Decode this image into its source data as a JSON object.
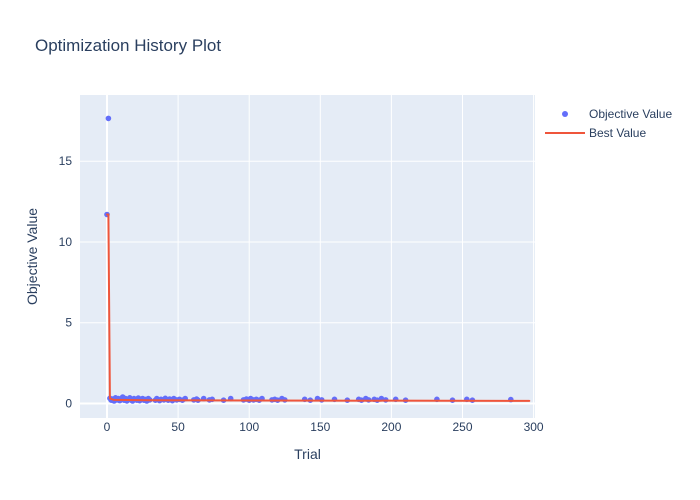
{
  "chart_data": {
    "type": "scatter",
    "title": "Optimization History Plot",
    "xlabel": "Trial",
    "ylabel": "Objective Value",
    "xlim": [
      -19,
      301
    ],
    "ylim": [
      -0.9,
      19.1
    ],
    "xticks": [
      0,
      50,
      100,
      150,
      200,
      250,
      300
    ],
    "yticks": [
      0,
      5,
      10,
      15
    ],
    "grid": true,
    "legend_position": "top-right-outside",
    "series": [
      {
        "name": "Objective Value",
        "type": "scatter",
        "color": "#636efa",
        "marker_radius": 2.8,
        "points": [
          [
            0,
            11.7
          ],
          [
            1,
            17.65
          ],
          [
            2,
            0.32
          ],
          [
            3,
            0.2
          ],
          [
            4,
            0.27
          ],
          [
            5,
            0.15
          ],
          [
            6,
            0.35
          ],
          [
            7,
            0.22
          ],
          [
            8,
            0.3
          ],
          [
            9,
            0.18
          ],
          [
            10,
            0.25
          ],
          [
            11,
            0.4
          ],
          [
            12,
            0.2
          ],
          [
            13,
            0.3
          ],
          [
            14,
            0.16
          ],
          [
            15,
            0.27
          ],
          [
            16,
            0.35
          ],
          [
            17,
            0.2
          ],
          [
            18,
            0.15
          ],
          [
            19,
            0.3
          ],
          [
            20,
            0.24
          ],
          [
            21,
            0.2
          ],
          [
            22,
            0.33
          ],
          [
            23,
            0.17
          ],
          [
            24,
            0.26
          ],
          [
            25,
            0.3
          ],
          [
            26,
            0.2
          ],
          [
            27,
            0.25
          ],
          [
            28,
            0.15
          ],
          [
            29,
            0.3
          ],
          [
            30,
            0.22
          ],
          [
            34,
            0.2
          ],
          [
            35,
            0.3
          ],
          [
            37,
            0.18
          ],
          [
            38,
            0.26
          ],
          [
            40,
            0.22
          ],
          [
            41,
            0.32
          ],
          [
            43,
            0.2
          ],
          [
            44,
            0.27
          ],
          [
            46,
            0.17
          ],
          [
            47,
            0.3
          ],
          [
            49,
            0.22
          ],
          [
            51,
            0.26
          ],
          [
            53,
            0.2
          ],
          [
            55,
            0.3
          ],
          [
            61,
            0.22
          ],
          [
            63,
            0.27
          ],
          [
            64,
            0.2
          ],
          [
            68,
            0.3
          ],
          [
            72,
            0.22
          ],
          [
            74,
            0.26
          ],
          [
            82,
            0.2
          ],
          [
            87,
            0.3
          ],
          [
            96,
            0.22
          ],
          [
            98,
            0.27
          ],
          [
            100,
            0.2
          ],
          [
            101,
            0.3
          ],
          [
            103,
            0.22
          ],
          [
            105,
            0.26
          ],
          [
            107,
            0.2
          ],
          [
            109,
            0.3
          ],
          [
            116,
            0.22
          ],
          [
            118,
            0.26
          ],
          [
            120,
            0.2
          ],
          [
            123,
            0.3
          ],
          [
            125,
            0.22
          ],
          [
            139,
            0.26
          ],
          [
            143,
            0.2
          ],
          [
            148,
            0.3
          ],
          [
            151,
            0.22
          ],
          [
            160,
            0.26
          ],
          [
            169,
            0.2
          ],
          [
            177,
            0.26
          ],
          [
            179,
            0.2
          ],
          [
            182,
            0.3
          ],
          [
            184,
            0.22
          ],
          [
            188,
            0.26
          ],
          [
            190,
            0.2
          ],
          [
            193,
            0.3
          ],
          [
            196,
            0.22
          ],
          [
            203,
            0.26
          ],
          [
            210,
            0.2
          ],
          [
            232,
            0.26
          ],
          [
            243,
            0.2
          ],
          [
            253,
            0.26
          ],
          [
            257,
            0.2
          ],
          [
            284,
            0.24
          ]
        ]
      },
      {
        "name": "Best Value",
        "type": "line",
        "color": "#ef553b",
        "line_width": 2,
        "points": [
          [
            0,
            11.7
          ],
          [
            1,
            11.7
          ],
          [
            2,
            0.3
          ],
          [
            5,
            0.22
          ],
          [
            30,
            0.2
          ],
          [
            150,
            0.18
          ],
          [
            297,
            0.16
          ]
        ]
      }
    ]
  },
  "colors": {
    "paper_bg": "#ffffff",
    "plot_bg": "#e5ecf6",
    "grid": "#ffffff",
    "text": "#2a3f5f",
    "objective": "#636efa",
    "best": "#ef553b"
  }
}
